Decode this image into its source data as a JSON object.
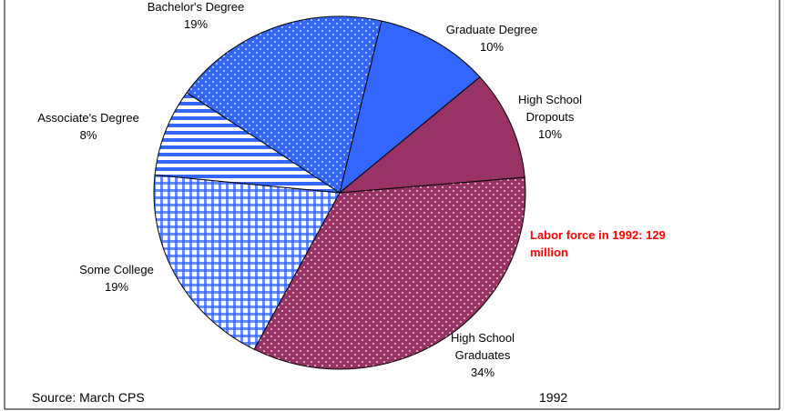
{
  "chart_data": {
    "type": "pie",
    "categories": [
      "Graduate Degree",
      "High School Dropouts",
      "High School Graduates",
      "Some College",
      "Associate's Degree",
      "Bachelor's Degree"
    ],
    "values": [
      10,
      10,
      34,
      19,
      8,
      19
    ],
    "value_labels": [
      "10%",
      "10%",
      "34%",
      "19%",
      "8%",
      "19%"
    ],
    "colors": [
      "#3366ff",
      "#993366",
      "#993366",
      "#3366ff",
      "#3366ff",
      "#3366ff"
    ],
    "patterns": [
      "solid",
      "solid",
      "dots",
      "checks",
      "stripes",
      "dots"
    ],
    "annotation": "Labor force in 1992: 129 million",
    "source": "Source: March CPS",
    "year": "1992"
  }
}
